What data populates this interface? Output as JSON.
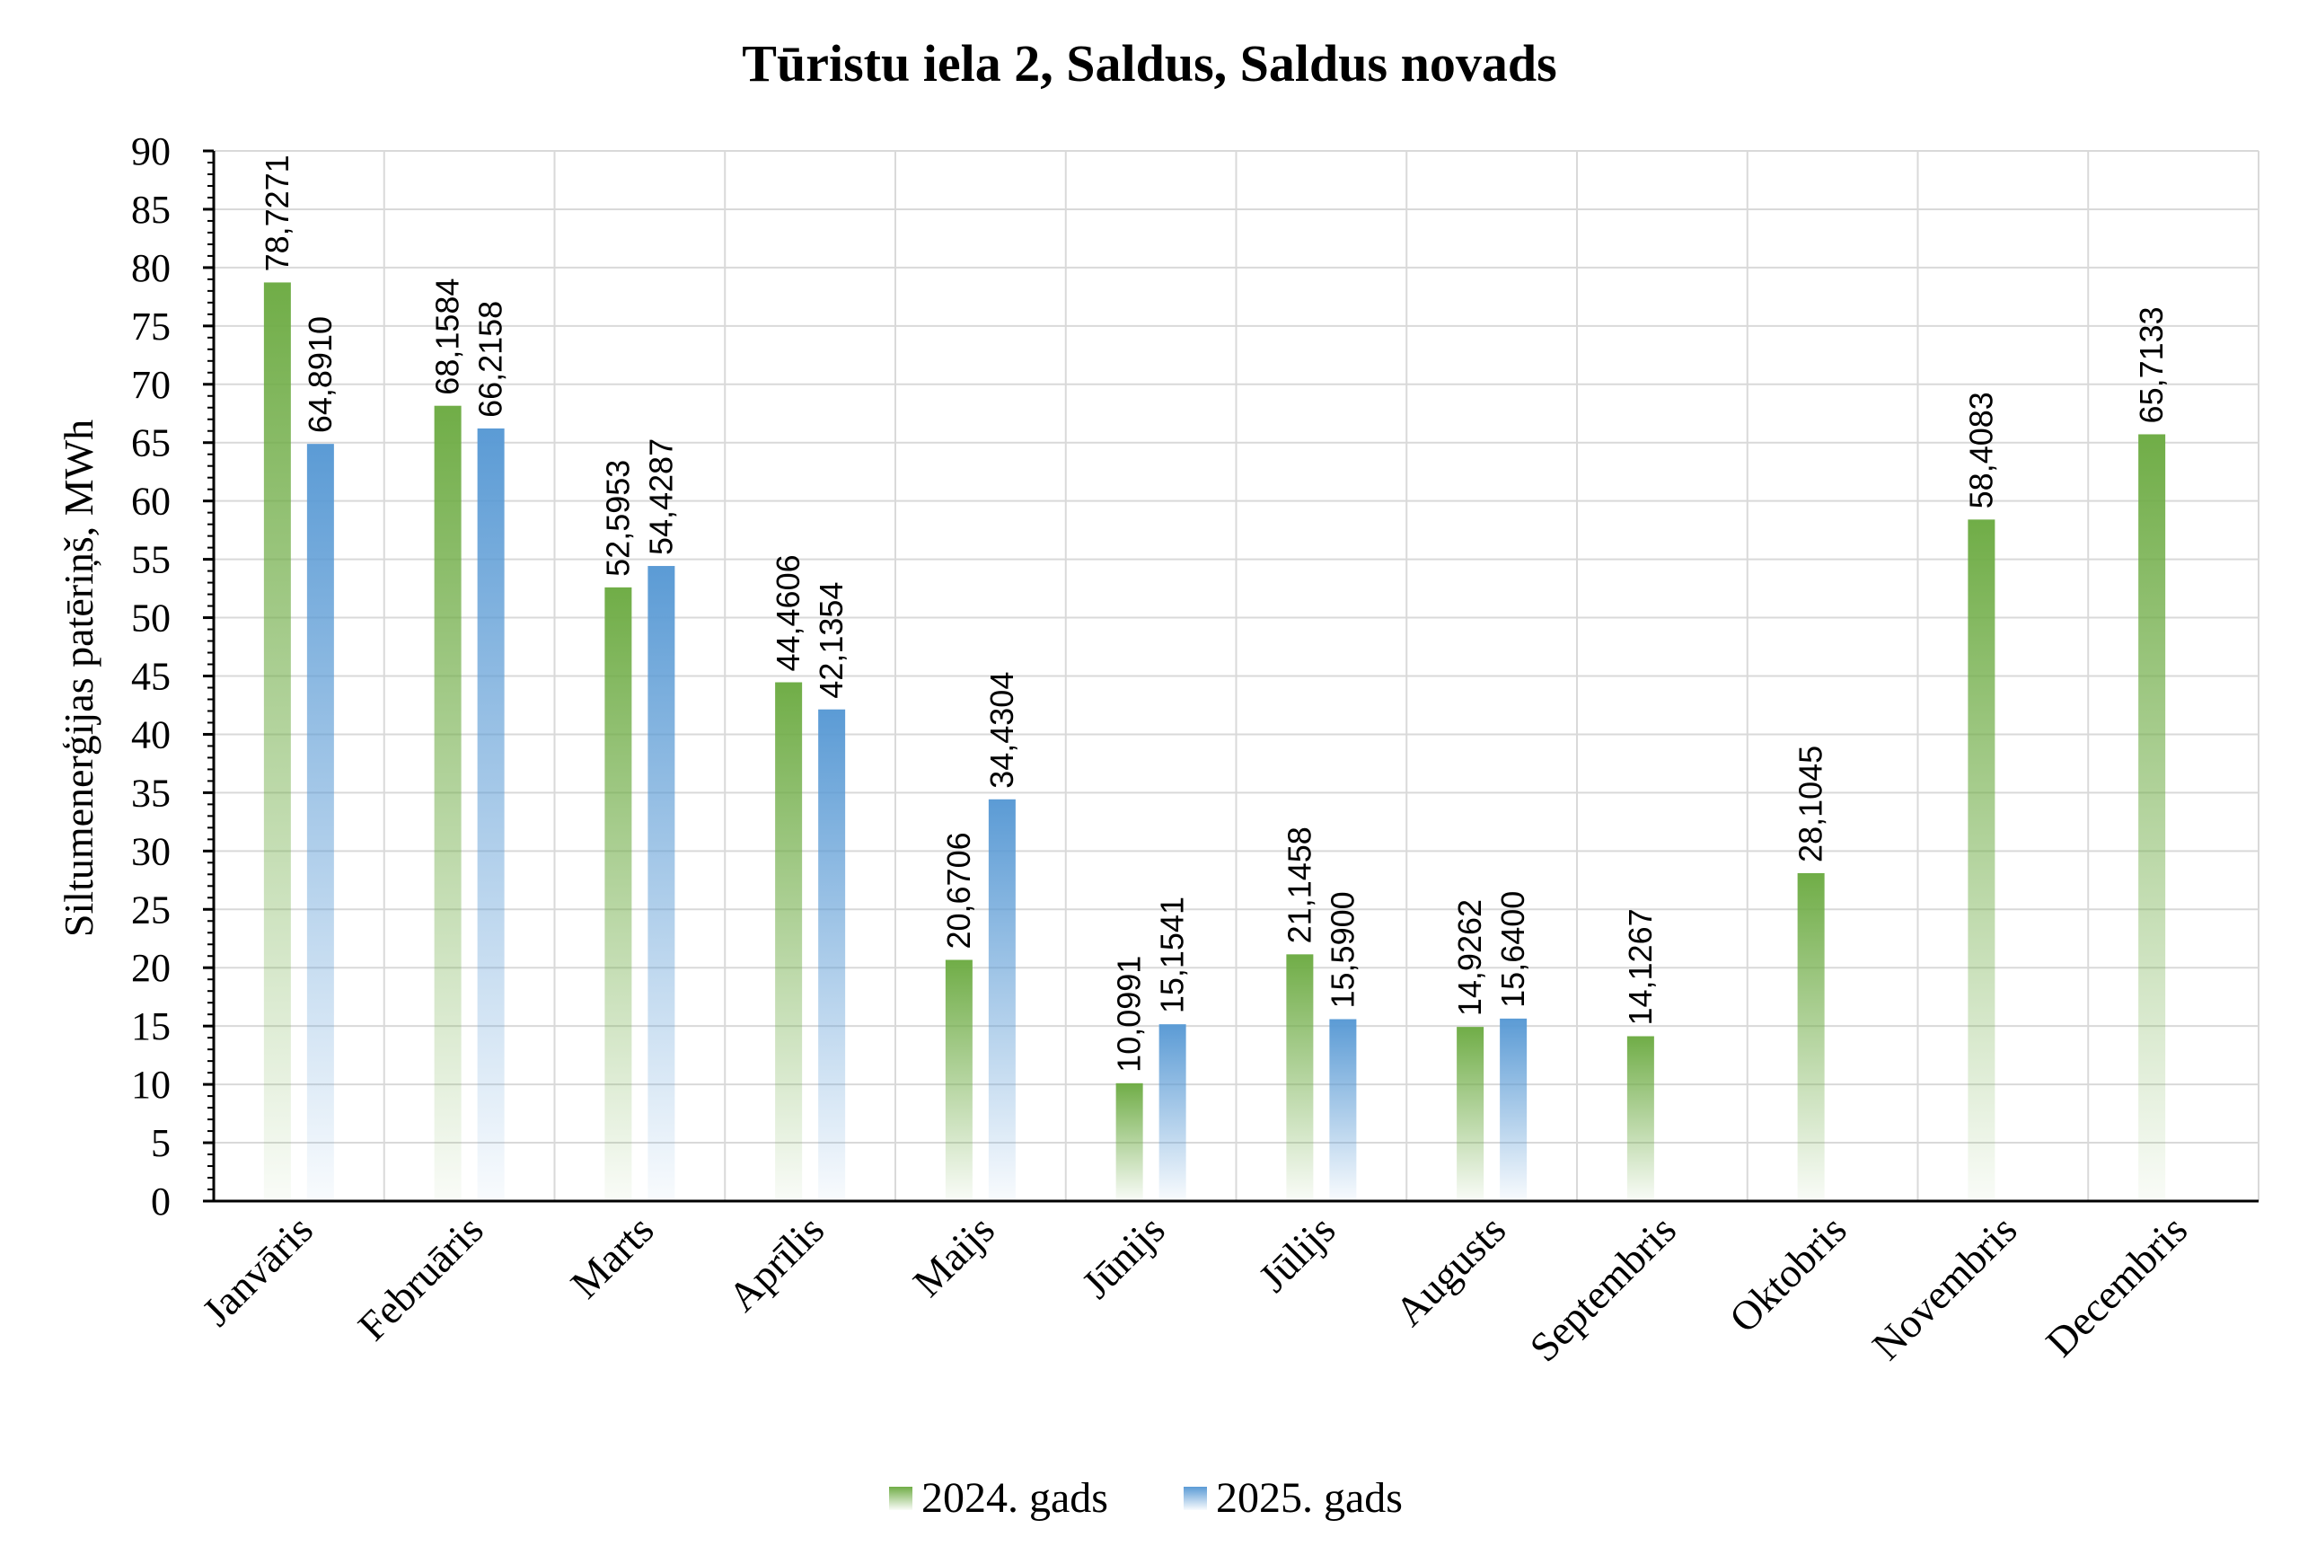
{
  "chart_data": {
    "type": "bar",
    "title": "Tūristu iela 2, Saldus, Saldus novads",
    "ylabel": "Siltumenerģijas patēriņš, MWh",
    "xlabel": "",
    "ylim": [
      0,
      90
    ],
    "yticks": [
      "0",
      "5",
      "10",
      "15",
      "20",
      "25",
      "30",
      "35",
      "40",
      "45",
      "50",
      "55",
      "60",
      "65",
      "70",
      "75",
      "80",
      "85",
      "90"
    ],
    "categories": [
      "Janvāris",
      "Februāris",
      "Marts",
      "Aprīlis",
      "Maijs",
      "Jūnijs",
      "Jūlijs",
      "Augusts",
      "Septembris",
      "Oktobris",
      "Novembris",
      "Decembris"
    ],
    "series": [
      {
        "name": "2024. gads",
        "color": "#70AD47",
        "values": [
          78.7271,
          68.1584,
          52.5953,
          44.4606,
          20.6706,
          10.0991,
          21.1458,
          14.9262,
          14.1267,
          28.1045,
          58.4083,
          65.7133
        ],
        "labels": [
          "78,7271",
          "68,1584",
          "52,5953",
          "44,4606",
          "20,6706",
          "10,0991",
          "21,1458",
          "14,9262",
          "14,1267",
          "28,1045",
          "58,4083",
          "65,7133"
        ]
      },
      {
        "name": "2025. gads",
        "color": "#5B9BD5",
        "values": [
          64.891,
          66.2158,
          54.4287,
          42.1354,
          34.4304,
          15.1541,
          15.59,
          15.64,
          null,
          null,
          null,
          null
        ],
        "labels": [
          "64,8910",
          "66,2158",
          "54,4287",
          "42,1354",
          "34,4304",
          "15,1541",
          "15,5900",
          "15,6400",
          "",
          "",
          "",
          ""
        ]
      }
    ],
    "grid": true,
    "legend": "bottom"
  }
}
